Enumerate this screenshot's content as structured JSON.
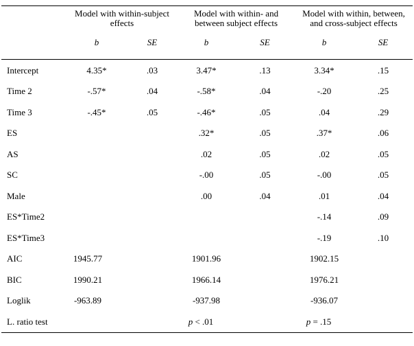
{
  "table": {
    "groups": [
      {
        "title": "Model with within-subject\neffects"
      },
      {
        "title": "Model with within- and\nbetween subject effects"
      },
      {
        "title": "Model with within, between,\nand cross-subject effects"
      }
    ],
    "subheaders": [
      "b",
      "SE",
      "b",
      "SE",
      "b",
      "SE"
    ],
    "rows": [
      {
        "label": "Intercept",
        "kind": "coef",
        "cells": [
          "4.35*",
          ".03",
          "3.47*",
          ".13",
          "3.34*",
          ".15"
        ]
      },
      {
        "label": "Time 2",
        "kind": "coef",
        "cells": [
          "-.57*",
          ".04",
          "-.58*",
          ".04",
          "-.20",
          ".25"
        ]
      },
      {
        "label": "Time 3",
        "kind": "coef",
        "cells": [
          "-.45*",
          ".05",
          "-.46*",
          ".05",
          ".04",
          ".29"
        ]
      },
      {
        "label": "ES",
        "kind": "coef",
        "cells": [
          "",
          "",
          ".32*",
          ".05",
          ".37*",
          ".06"
        ]
      },
      {
        "label": "AS",
        "kind": "coef",
        "cells": [
          "",
          "",
          ".02",
          ".05",
          ".02",
          ".05"
        ]
      },
      {
        "label": "SC",
        "kind": "coef",
        "cells": [
          "",
          "",
          "-.00",
          ".05",
          "-.00",
          ".05"
        ]
      },
      {
        "label": "Male",
        "kind": "coef",
        "cells": [
          "",
          "",
          ".00",
          ".04",
          ".01",
          ".04"
        ]
      },
      {
        "label": "ES*Time2",
        "kind": "coef",
        "cells": [
          "",
          "",
          "",
          "",
          "-.14",
          ".09"
        ]
      },
      {
        "label": "ES*Time3",
        "kind": "coef",
        "cells": [
          "",
          "",
          "",
          "",
          "-.19",
          ".10"
        ]
      },
      {
        "label": "AIC",
        "kind": "fit",
        "cells": [
          "1945.77",
          "",
          "1901.96",
          "",
          "1902.15",
          ""
        ]
      },
      {
        "label": "BIC",
        "kind": "fit",
        "cells": [
          "1990.21",
          "",
          "1966.14",
          "",
          "1976.21",
          ""
        ]
      },
      {
        "label": "Loglik",
        "kind": "fit",
        "cells": [
          "-963.89",
          "",
          "-937.98",
          "",
          "-936.07",
          ""
        ]
      },
      {
        "label": "L. ratio test",
        "kind": "fit",
        "cells": [
          "",
          "",
          "p < .01",
          "",
          "p = .15",
          ""
        ]
      }
    ],
    "colors": {
      "background": "#ffffff",
      "text": "#000000",
      "rule": "#000000"
    }
  }
}
